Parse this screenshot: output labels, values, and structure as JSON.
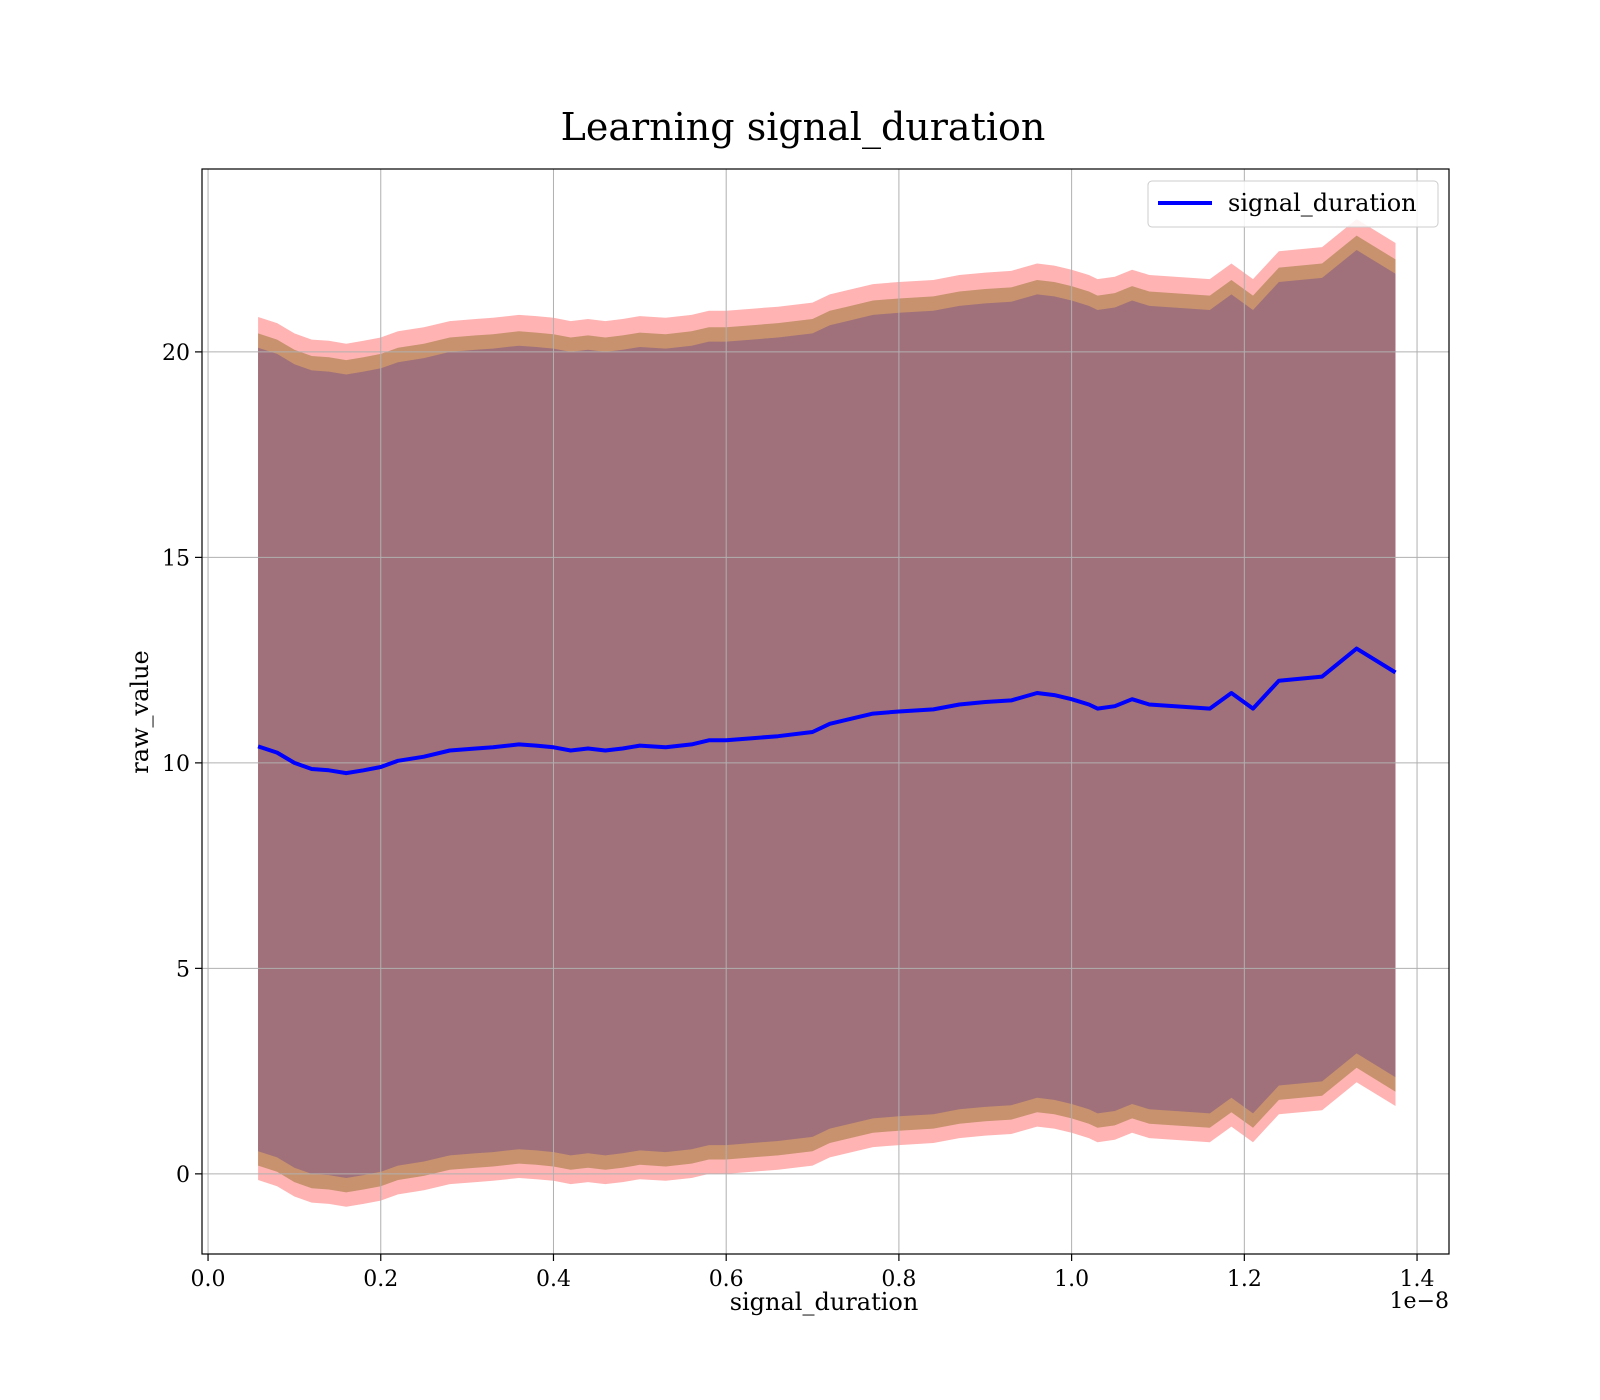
{
  "chart_data": {
    "type": "line",
    "title": "Learning signal_duration",
    "xlabel": "signal_duration",
    "ylabel": "raw_value",
    "x_offset_text": "1e−8",
    "xlim": [
      -0.007,
      1.437
    ],
    "ylim": [
      -1.95,
      24.45
    ],
    "x_ticks": [
      0.0,
      0.2,
      0.4,
      0.6,
      0.8,
      1.0,
      1.2,
      1.4
    ],
    "x_tick_labels": [
      "0.0",
      "0.2",
      "0.4",
      "0.6",
      "0.8",
      "1.0",
      "1.2",
      "1.4"
    ],
    "y_ticks": [
      0,
      5,
      10,
      15,
      20
    ],
    "y_tick_labels": [
      "0",
      "5",
      "10",
      "15",
      "20"
    ],
    "grid": true,
    "legend_position": "top-right",
    "colors": {
      "line": "#0000ff",
      "outer_band": "#ff9999",
      "middle_band": "#c8926e",
      "inner_band": "#a0717a",
      "grid": "#b0b0b0"
    },
    "x": [
      0.058,
      0.08,
      0.1,
      0.12,
      0.14,
      0.16,
      0.18,
      0.2,
      0.22,
      0.25,
      0.28,
      0.31,
      0.33,
      0.36,
      0.38,
      0.4,
      0.42,
      0.44,
      0.46,
      0.48,
      0.5,
      0.53,
      0.56,
      0.58,
      0.6,
      0.63,
      0.66,
      0.7,
      0.72,
      0.74,
      0.77,
      0.8,
      0.84,
      0.87,
      0.9,
      0.93,
      0.96,
      0.98,
      1.0,
      1.02,
      1.03,
      1.05,
      1.07,
      1.09,
      1.16,
      1.185,
      1.21,
      1.24,
      1.29,
      1.33,
      1.375
    ],
    "series": [
      {
        "name": "signal_duration",
        "values": [
          10.4,
          10.25,
          10.0,
          9.85,
          9.82,
          9.75,
          9.82,
          9.9,
          10.05,
          10.15,
          10.3,
          10.35,
          10.38,
          10.45,
          10.42,
          10.38,
          10.3,
          10.35,
          10.3,
          10.35,
          10.42,
          10.38,
          10.45,
          10.55,
          10.55,
          10.6,
          10.65,
          10.75,
          10.95,
          11.05,
          11.2,
          11.25,
          11.3,
          11.42,
          11.48,
          11.52,
          11.7,
          11.65,
          11.55,
          11.42,
          11.32,
          11.38,
          11.55,
          11.42,
          11.32,
          11.7,
          11.32,
          12.0,
          12.1,
          12.78,
          12.2
        ],
        "band_inner_upper_offset": 9.7,
        "band_inner_lower_offset": 9.85,
        "band_middle_upper_offset": 10.05,
        "band_middle_lower_offset": 10.2,
        "band_outer_upper_offset": 10.45,
        "band_outer_lower_offset": 10.55
      }
    ]
  }
}
